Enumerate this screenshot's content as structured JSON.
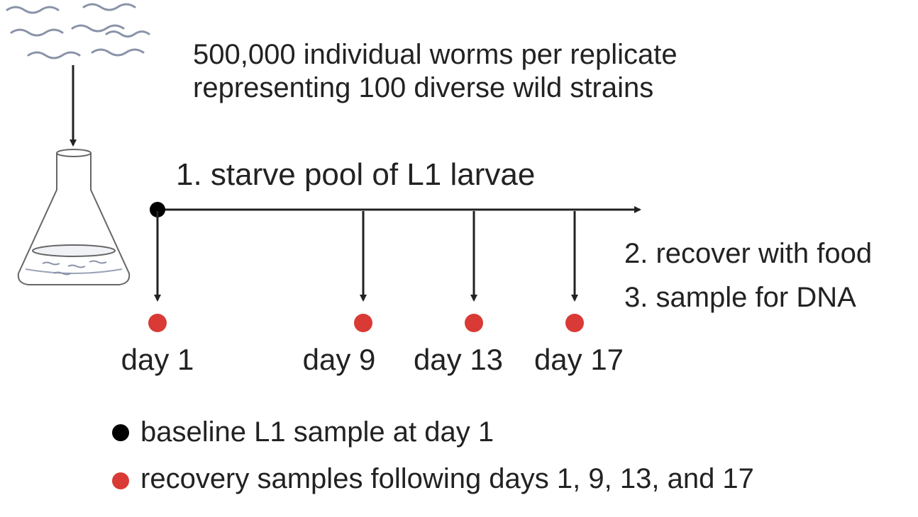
{
  "header": {
    "line1": "500,000 individual worms per replicate",
    "line2": "representing 100 diverse wild strains"
  },
  "steps": {
    "step1": "1. starve pool of L1 larvae",
    "step2": "2. recover with food",
    "step3": "3. sample for DNA"
  },
  "days": [
    "day 1",
    "day 9",
    "day 13",
    "day 17"
  ],
  "legend": {
    "baseline": "baseline L1 sample at day 1",
    "recovery": "recovery samples following days 1, 9, 13, and 17"
  },
  "colors": {
    "baseline_dot": "#000000",
    "recovery_dot": "#d93a35",
    "line": "#222222"
  }
}
